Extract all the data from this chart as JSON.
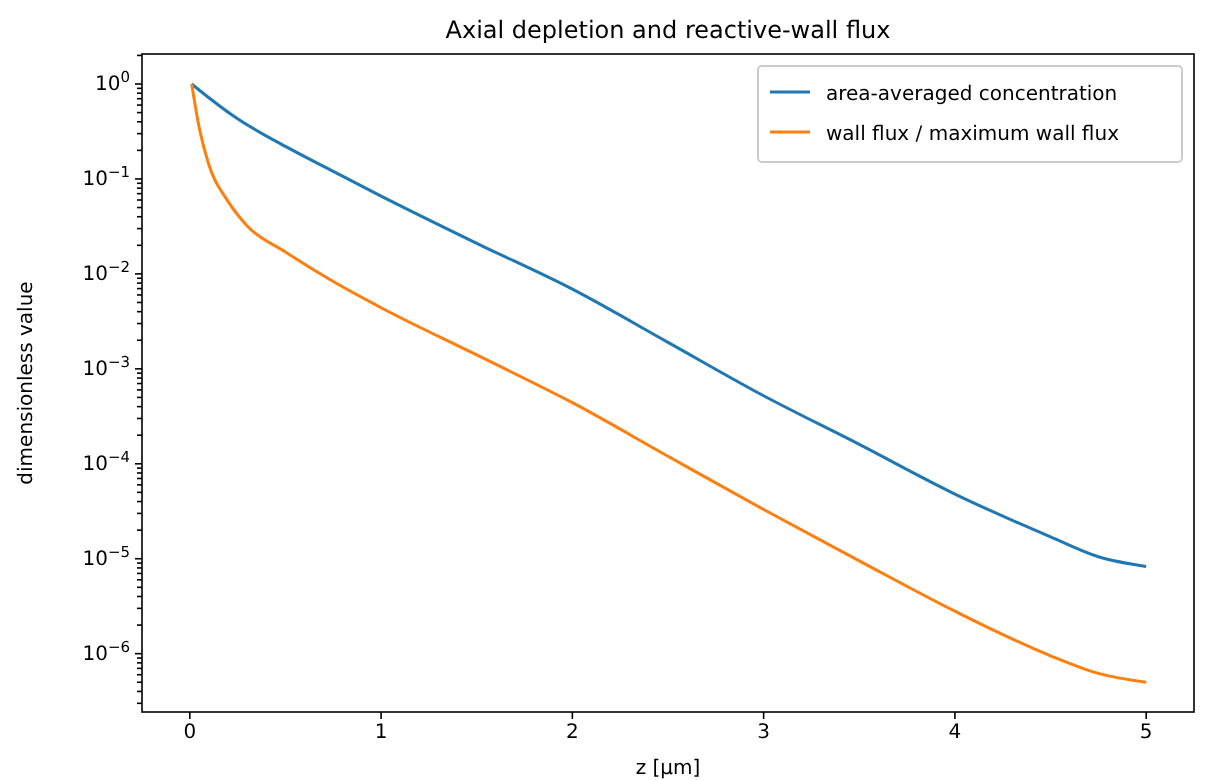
{
  "chart_data": {
    "type": "line",
    "title": "Axial depletion and reactive-wall flux",
    "xlabel": "z [μm]",
    "ylabel": "dimensionless value",
    "log": "y",
    "legend": "top right",
    "grid": false,
    "xlim": [
      -0.25,
      5.25
    ],
    "xticks": [
      0,
      1,
      2,
      3,
      4,
      5
    ],
    "ylim": [
      2.43e-07,
      2.07
    ],
    "yticks": [
      {
        "value": 1,
        "label": "10$^{0}$"
      },
      {
        "value": 0.1,
        "label": "10$^{−1}$"
      },
      {
        "value": 0.01,
        "label": "10$^{−2}$"
      },
      {
        "value": 0.001,
        "label": "10$^{−3}$"
      },
      {
        "value": 0.0001,
        "label": "10$^{−4}$"
      },
      {
        "value": 1e-05,
        "label": "10$^{−5}$"
      },
      {
        "value": 1e-06,
        "label": "10$^{−6}$"
      },
      {
        "value": 2,
        "label": null
      },
      {
        "value": 0.2,
        "label": null
      },
      {
        "value": 0.3,
        "label": null
      },
      {
        "value": 0.4,
        "label": null
      },
      {
        "value": 0.5,
        "label": null
      },
      {
        "value": 0.6,
        "label": null
      },
      {
        "value": 0.7,
        "label": null
      },
      {
        "value": 0.8,
        "label": null
      },
      {
        "value": 0.9,
        "label": null
      },
      {
        "value": 0.02,
        "label": null
      },
      {
        "value": 0.03,
        "label": null
      },
      {
        "value": 0.04,
        "label": null
      },
      {
        "value": 0.05,
        "label": null
      },
      {
        "value": 0.06,
        "label": null
      },
      {
        "value": 0.07,
        "label": null
      },
      {
        "value": 0.08,
        "label": null
      },
      {
        "value": 0.09,
        "label": null
      },
      {
        "value": 0.002,
        "label": null
      },
      {
        "value": 0.003,
        "label": null
      },
      {
        "value": 0.004,
        "label": null
      },
      {
        "value": 0.005,
        "label": null
      },
      {
        "value": 0.006,
        "label": null
      },
      {
        "value": 0.007,
        "label": null
      },
      {
        "value": 0.008,
        "label": null
      },
      {
        "value": 0.009,
        "label": null
      },
      {
        "value": 0.0002,
        "label": null
      },
      {
        "value": 0.0003,
        "label": null
      },
      {
        "value": 0.0004,
        "label": null
      },
      {
        "value": 0.0005,
        "label": null
      },
      {
        "value": 0.0006,
        "label": null
      },
      {
        "value": 0.0007,
        "label": null
      },
      {
        "value": 0.0008,
        "label": null
      },
      {
        "value": 0.0009,
        "label": null
      },
      {
        "value": 2e-05,
        "label": null
      },
      {
        "value": 3e-05,
        "label": null
      },
      {
        "value": 4e-05,
        "label": null
      },
      {
        "value": 5e-05,
        "label": null
      },
      {
        "value": 6e-05,
        "label": null
      },
      {
        "value": 7e-05,
        "label": null
      },
      {
        "value": 8e-05,
        "label": null
      },
      {
        "value": 9e-05,
        "label": null
      },
      {
        "value": 2e-06,
        "label": null
      },
      {
        "value": 3e-06,
        "label": null
      },
      {
        "value": 4e-06,
        "label": null
      },
      {
        "value": 5e-06,
        "label": null
      },
      {
        "value": 6e-06,
        "label": null
      },
      {
        "value": 7e-06,
        "label": null
      },
      {
        "value": 8e-06,
        "label": null
      },
      {
        "value": 9e-06,
        "label": null
      },
      {
        "value": 3e-07,
        "label": null
      },
      {
        "value": 4e-07,
        "label": null
      },
      {
        "value": 5e-07,
        "label": null
      },
      {
        "value": 6e-07,
        "label": null
      },
      {
        "value": 7e-07,
        "label": null
      },
      {
        "value": 8e-07,
        "label": null
      },
      {
        "value": 9e-07,
        "label": null
      }
    ],
    "series": [
      {
        "name": "area-averaged concentration",
        "color": "#1f77b4",
        "x": [
          0.01,
          0.05,
          0.25,
          0.5,
          0.75,
          1,
          1.5,
          2,
          2.5,
          3,
          3.5,
          4,
          4.5,
          4.75,
          5
        ],
        "values": [
          1,
          0.86,
          0.43,
          0.22,
          0.12,
          0.066,
          0.021,
          0.0069,
          0.0019,
          0.00052,
          0.00016,
          4.8e-05,
          1.7e-05,
          1.05e-05,
          8.3e-06
        ]
      },
      {
        "name": "wall flux / maximum wall flux",
        "color": "#ff7f0e",
        "x": [
          0.01,
          0.05,
          0.1,
          0.2,
          0.3,
          0.5,
          0.75,
          1,
          1.5,
          2,
          2.5,
          3,
          3.5,
          4,
          4.5,
          4.75,
          5
        ],
        "values": [
          1,
          0.34,
          0.14,
          0.058,
          0.032,
          0.017,
          0.0083,
          0.0044,
          0.0014,
          0.00044,
          0.00012,
          3.3e-05,
          9.5e-06,
          2.8e-06,
          9.5e-07,
          6.2e-07,
          5e-07
        ]
      }
    ]
  }
}
